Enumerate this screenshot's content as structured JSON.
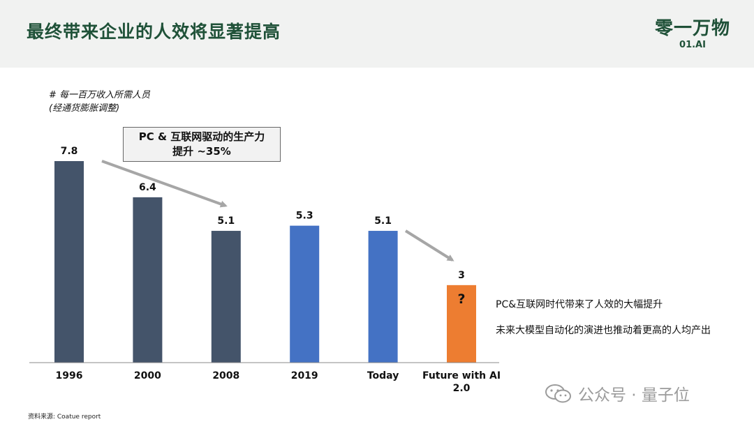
{
  "header": {
    "title": "最终带来企业的人效将显著提高",
    "logo_main": "零一万物",
    "logo_sub": "01.AI"
  },
  "y_unit_line1": "# 每一百万收入所需人员",
  "y_unit_line2": "(经通货膨胀调整)",
  "annotation_box": {
    "line1": "PC & 互联网驱动的生产力",
    "line2": "提升 ~35%"
  },
  "side_text": {
    "line1": "PC&互联网时代带来了人效的大幅提升",
    "line2": "未来大模型自动化的演进也推动着更高的人均产出"
  },
  "source": "资料来源: Coatue report",
  "watermark": {
    "text": "公众号 · 量子位",
    "icon": "wechat-icon"
  },
  "colors": {
    "title": "#1f5138",
    "bar_past": "#44546a",
    "bar_recent": "#4472c4",
    "bar_future": "#ed7d31",
    "arrow": "#a6a6a6"
  },
  "chart_data": {
    "type": "bar",
    "categories": [
      "1996",
      "2000",
      "2008",
      "2019",
      "Today",
      "Future with AI 2.0"
    ],
    "values": [
      7.8,
      6.4,
      5.1,
      5.3,
      5.1,
      3
    ],
    "data_labels": [
      "7.8",
      "6.4",
      "5.1",
      "5.3",
      "5.1",
      "3"
    ],
    "bar_colors": [
      "#44546a",
      "#44546a",
      "#44546a",
      "#4472c4",
      "#4472c4",
      "#ed7d31"
    ],
    "future_marker": "?",
    "ylim": [
      0,
      7.8
    ],
    "grid": false,
    "legend": "none"
  }
}
